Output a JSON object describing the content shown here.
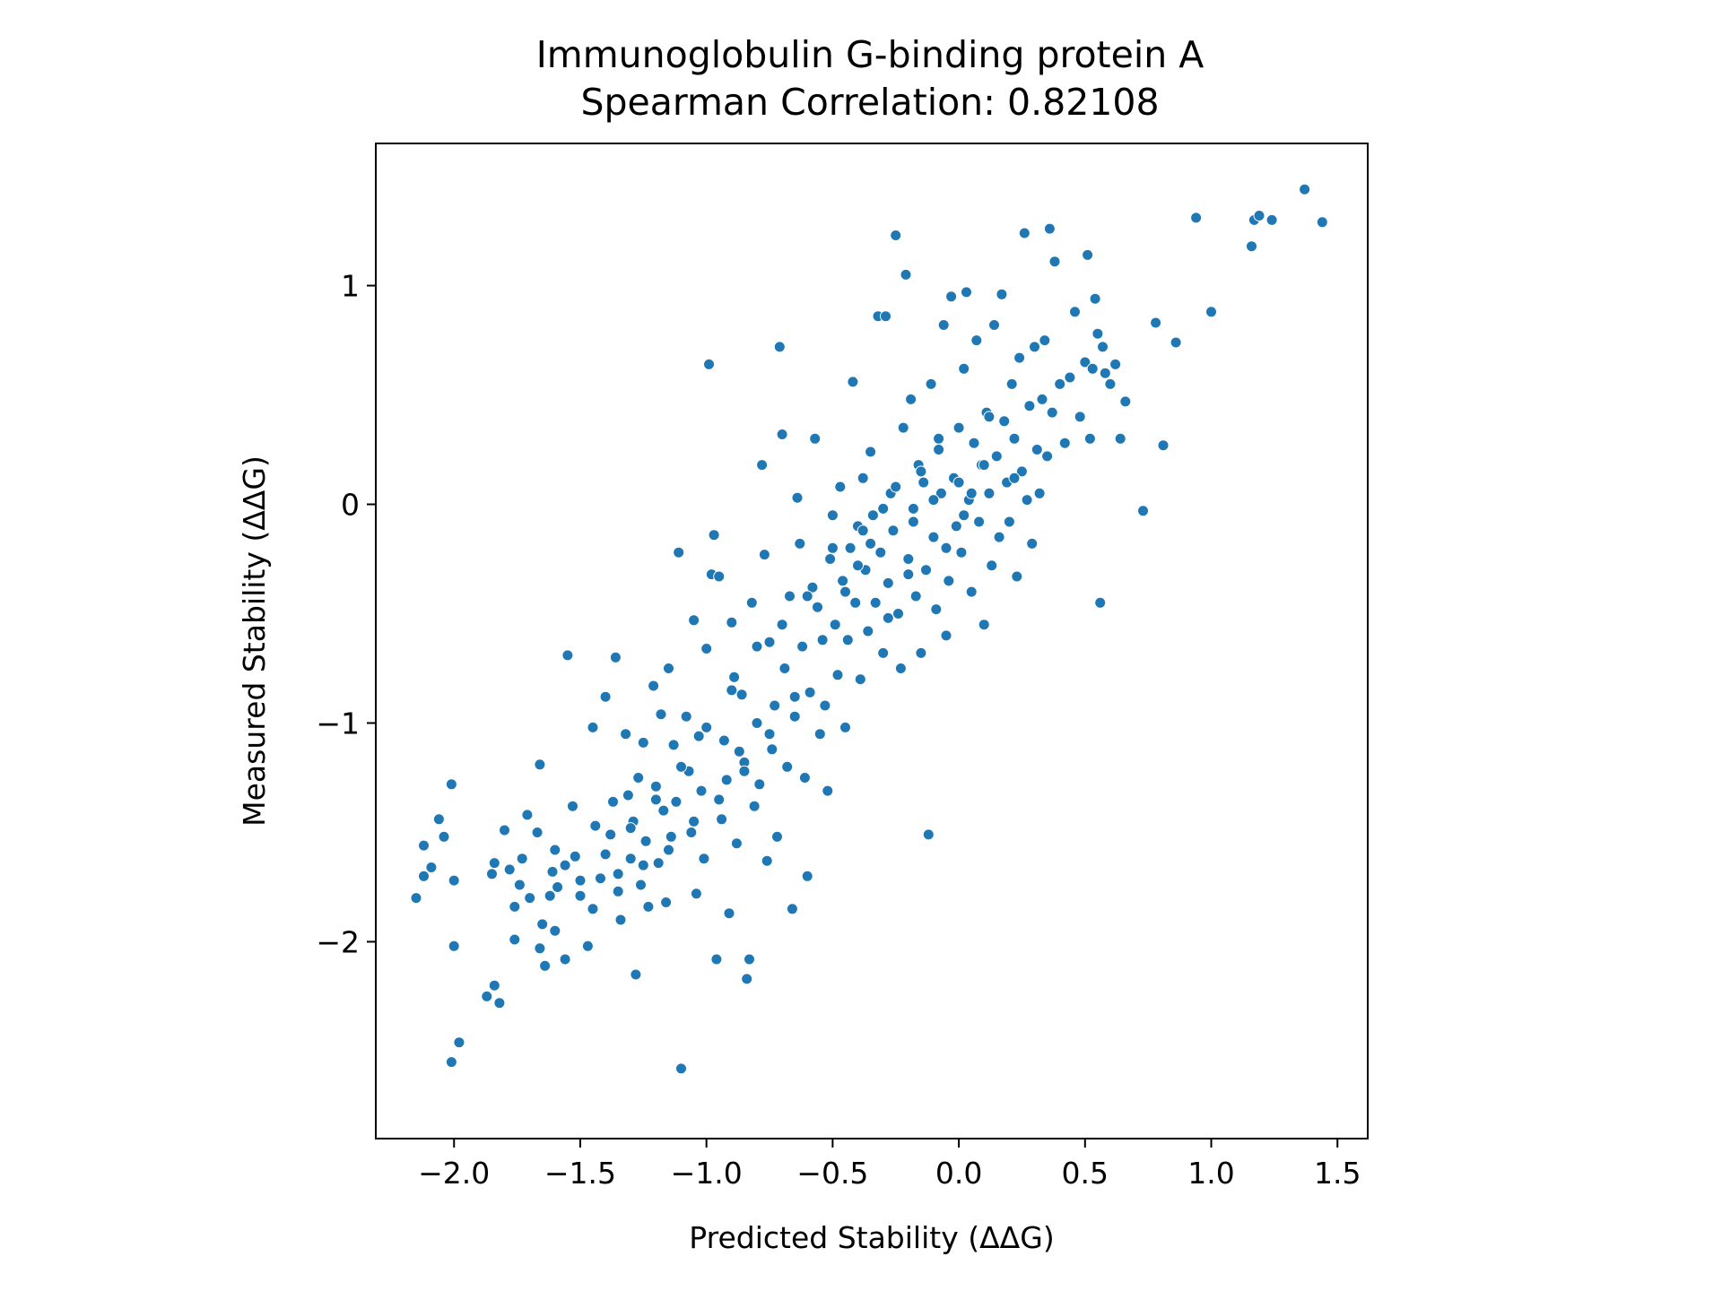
{
  "chart_data": {
    "type": "scatter",
    "title": "Immunoglobulin G-binding protein A",
    "subtitle": "Spearman Correlation: 0.82108",
    "xlabel": "Predicted Stability (ΔΔG)",
    "ylabel": "Measured Stability (ΔΔG)",
    "xlim": [
      -2.31,
      1.62
    ],
    "ylim": [
      -2.9,
      1.65
    ],
    "xticks": [
      -2.0,
      -1.5,
      -1.0,
      -0.5,
      0.0,
      0.5,
      1.0,
      1.5
    ],
    "xtick_labels": [
      "−2.0",
      "−1.5",
      "−1.0",
      "−0.5",
      "0.0",
      "0.5",
      "1.0",
      "1.5"
    ],
    "yticks": [
      -2,
      -1,
      0,
      1
    ],
    "ytick_labels": [
      "−2",
      "−1",
      "0",
      "1"
    ],
    "grid": false,
    "marker_color": "#1f77b4",
    "series": [
      {
        "points": [
          [
            -2.15,
            -1.8
          ],
          [
            -2.12,
            -1.56
          ],
          [
            -2.12,
            -1.7
          ],
          [
            -2.09,
            -1.66
          ],
          [
            -2.06,
            -1.44
          ],
          [
            -2.04,
            -1.52
          ],
          [
            -2.01,
            -1.28
          ],
          [
            -2.0,
            -1.72
          ],
          [
            -2.0,
            -2.02
          ],
          [
            -2.01,
            -2.55
          ],
          [
            -1.98,
            -2.46
          ],
          [
            -1.87,
            -2.25
          ],
          [
            -1.84,
            -2.2
          ],
          [
            -1.82,
            -2.28
          ],
          [
            -1.85,
            -1.69
          ],
          [
            -1.84,
            -1.64
          ],
          [
            -1.8,
            -1.49
          ],
          [
            -1.78,
            -1.67
          ],
          [
            -1.76,
            -1.99
          ],
          [
            -1.76,
            -1.84
          ],
          [
            -1.74,
            -1.74
          ],
          [
            -1.73,
            -1.62
          ],
          [
            -1.71,
            -1.42
          ],
          [
            -1.7,
            -1.8
          ],
          [
            -1.67,
            -1.5
          ],
          [
            -1.66,
            -1.19
          ],
          [
            -1.66,
            -2.03
          ],
          [
            -1.65,
            -1.92
          ],
          [
            -1.64,
            -2.11
          ],
          [
            -1.62,
            -1.79
          ],
          [
            -1.61,
            -1.68
          ],
          [
            -1.6,
            -1.58
          ],
          [
            -1.59,
            -1.75
          ],
          [
            -1.56,
            -1.65
          ],
          [
            -1.56,
            -2.08
          ],
          [
            -1.55,
            -0.69
          ],
          [
            -1.53,
            -1.38
          ],
          [
            -1.52,
            -1.61
          ],
          [
            -1.5,
            -1.79
          ],
          [
            -1.47,
            -2.02
          ],
          [
            -1.45,
            -1.02
          ],
          [
            -1.44,
            -1.47
          ],
          [
            -1.42,
            -1.71
          ],
          [
            -1.4,
            -0.88
          ],
          [
            -1.38,
            -1.51
          ],
          [
            -1.37,
            -1.36
          ],
          [
            -1.36,
            -0.7
          ],
          [
            -1.35,
            -1.69
          ],
          [
            -1.34,
            -1.9
          ],
          [
            -1.32,
            -1.05
          ],
          [
            -1.31,
            -1.33
          ],
          [
            -1.3,
            -1.62
          ],
          [
            -1.29,
            -1.45
          ],
          [
            -1.28,
            -2.15
          ],
          [
            -1.27,
            -1.25
          ],
          [
            -1.26,
            -1.74
          ],
          [
            -1.25,
            -1.09
          ],
          [
            -1.24,
            -1.54
          ],
          [
            -1.23,
            -1.84
          ],
          [
            -1.21,
            -0.83
          ],
          [
            -1.2,
            -1.29
          ],
          [
            -1.19,
            -1.64
          ],
          [
            -1.18,
            -0.96
          ],
          [
            -1.17,
            -1.4
          ],
          [
            -1.16,
            -1.82
          ],
          [
            -1.15,
            -0.75
          ],
          [
            -1.14,
            -1.52
          ],
          [
            -1.13,
            -1.1
          ],
          [
            -1.12,
            -1.36
          ],
          [
            -1.11,
            -0.22
          ],
          [
            -1.1,
            -2.58
          ],
          [
            -1.08,
            -0.97
          ],
          [
            -1.07,
            -1.22
          ],
          [
            -1.06,
            -1.5
          ],
          [
            -1.05,
            -0.53
          ],
          [
            -1.04,
            -1.78
          ],
          [
            -1.03,
            -1.06
          ],
          [
            -1.02,
            -1.31
          ],
          [
            -1.01,
            -1.62
          ],
          [
            -1.0,
            -0.66
          ],
          [
            -0.99,
            0.64
          ],
          [
            -0.98,
            -0.32
          ],
          [
            -0.97,
            -0.14
          ],
          [
            -0.96,
            -2.08
          ],
          [
            -0.95,
            -0.33
          ],
          [
            -0.94,
            -1.44
          ],
          [
            -0.93,
            -1.08
          ],
          [
            -0.92,
            -1.26
          ],
          [
            -0.91,
            -1.87
          ],
          [
            -0.9,
            -0.54
          ],
          [
            -0.89,
            -0.79
          ],
          [
            -0.88,
            -1.55
          ],
          [
            -0.87,
            -1.13
          ],
          [
            -0.86,
            -0.87
          ],
          [
            -0.85,
            -1.18
          ],
          [
            -0.84,
            -2.17
          ],
          [
            -0.83,
            -2.08
          ],
          [
            -0.82,
            -0.45
          ],
          [
            -0.81,
            -1.38
          ],
          [
            -0.8,
            -1.0
          ],
          [
            -0.79,
            -1.28
          ],
          [
            -0.78,
            0.18
          ],
          [
            -0.77,
            -0.23
          ],
          [
            -0.76,
            -1.63
          ],
          [
            -0.75,
            -0.63
          ],
          [
            -0.74,
            -1.12
          ],
          [
            -0.73,
            -0.92
          ],
          [
            -0.72,
            -1.52
          ],
          [
            -0.71,
            0.72
          ],
          [
            -0.7,
            0.32
          ],
          [
            -0.69,
            -0.75
          ],
          [
            -0.68,
            -1.2
          ],
          [
            -0.67,
            -0.42
          ],
          [
            -0.66,
            -1.85
          ],
          [
            -0.65,
            -0.97
          ],
          [
            -0.64,
            0.03
          ],
          [
            -0.63,
            -0.18
          ],
          [
            -0.62,
            -0.65
          ],
          [
            -0.61,
            -1.25
          ],
          [
            -0.6,
            -1.7
          ],
          [
            -0.59,
            -0.86
          ],
          [
            -0.58,
            -0.38
          ],
          [
            -0.57,
            0.3
          ],
          [
            -0.56,
            -0.47
          ],
          [
            -0.55,
            -1.05
          ],
          [
            -0.54,
            -0.62
          ],
          [
            -0.53,
            -0.92
          ],
          [
            -0.52,
            -1.31
          ],
          [
            -0.51,
            -0.25
          ],
          [
            -0.5,
            -0.05
          ],
          [
            -0.49,
            -0.55
          ],
          [
            -0.48,
            -0.78
          ],
          [
            -0.47,
            0.08
          ],
          [
            -0.46,
            -0.35
          ],
          [
            -0.45,
            -1.02
          ],
          [
            -0.44,
            -0.62
          ],
          [
            -0.43,
            -0.2
          ],
          [
            -0.42,
            0.56
          ],
          [
            -0.41,
            -0.45
          ],
          [
            -0.4,
            -0.1
          ],
          [
            -0.39,
            -0.8
          ],
          [
            -0.38,
            0.12
          ],
          [
            -0.37,
            -0.3
          ],
          [
            -0.36,
            -0.58
          ],
          [
            -0.35,
            0.24
          ],
          [
            -0.34,
            -0.05
          ],
          [
            -0.33,
            -0.45
          ],
          [
            -0.32,
            0.86
          ],
          [
            -0.31,
            -0.22
          ],
          [
            -0.3,
            -0.68
          ],
          [
            -0.29,
            0.86
          ],
          [
            -0.28,
            -0.36
          ],
          [
            -0.27,
            0.05
          ],
          [
            -0.26,
            -0.12
          ],
          [
            -0.25,
            1.23
          ],
          [
            -0.24,
            -0.5
          ],
          [
            -0.23,
            -0.75
          ],
          [
            -0.22,
            0.35
          ],
          [
            -0.21,
            1.05
          ],
          [
            -0.2,
            -0.25
          ],
          [
            -0.19,
            0.48
          ],
          [
            -0.18,
            -0.02
          ],
          [
            -0.17,
            -0.42
          ],
          [
            -0.16,
            0.18
          ],
          [
            -0.15,
            -0.68
          ],
          [
            -0.14,
            0.1
          ],
          [
            -0.13,
            -0.3
          ],
          [
            -0.12,
            -1.51
          ],
          [
            -0.11,
            0.55
          ],
          [
            -0.1,
            -0.15
          ],
          [
            -0.09,
            -0.48
          ],
          [
            -0.08,
            0.25
          ],
          [
            -0.07,
            0.05
          ],
          [
            -0.06,
            0.82
          ],
          [
            -0.05,
            -0.6
          ],
          [
            -0.04,
            -0.35
          ],
          [
            -0.03,
            0.95
          ],
          [
            -0.02,
            0.12
          ],
          [
            -0.01,
            -0.1
          ],
          [
            0.0,
            0.35
          ],
          [
            0.01,
            -0.22
          ],
          [
            0.02,
            0.62
          ],
          [
            0.03,
            0.97
          ],
          [
            0.04,
            0.02
          ],
          [
            0.05,
            -0.4
          ],
          [
            0.06,
            0.28
          ],
          [
            0.07,
            0.75
          ],
          [
            0.08,
            -0.08
          ],
          [
            0.09,
            0.18
          ],
          [
            0.1,
            -0.55
          ],
          [
            0.11,
            0.42
          ],
          [
            0.12,
            0.05
          ],
          [
            0.13,
            -0.28
          ],
          [
            0.14,
            0.82
          ],
          [
            0.15,
            0.22
          ],
          [
            0.16,
            -0.15
          ],
          [
            0.17,
            0.96
          ],
          [
            0.18,
            0.38
          ],
          [
            0.19,
            0.1
          ],
          [
            0.2,
            -0.08
          ],
          [
            0.21,
            0.55
          ],
          [
            0.22,
            0.3
          ],
          [
            0.23,
            -0.33
          ],
          [
            0.24,
            0.67
          ],
          [
            0.25,
            0.15
          ],
          [
            0.26,
            1.24
          ],
          [
            0.27,
            0.02
          ],
          [
            0.28,
            0.45
          ],
          [
            0.29,
            -0.18
          ],
          [
            0.3,
            0.72
          ],
          [
            0.31,
            0.25
          ],
          [
            0.32,
            0.05
          ],
          [
            0.33,
            0.48
          ],
          [
            0.34,
            0.75
          ],
          [
            0.35,
            0.22
          ],
          [
            0.36,
            1.26
          ],
          [
            0.37,
            0.42
          ],
          [
            0.38,
            1.11
          ],
          [
            0.4,
            0.55
          ],
          [
            0.42,
            0.28
          ],
          [
            0.44,
            0.58
          ],
          [
            0.46,
            0.88
          ],
          [
            0.48,
            0.4
          ],
          [
            0.5,
            0.65
          ],
          [
            0.51,
            1.14
          ],
          [
            0.52,
            0.3
          ],
          [
            0.53,
            0.62
          ],
          [
            0.54,
            0.94
          ],
          [
            0.55,
            0.78
          ],
          [
            0.56,
            -0.45
          ],
          [
            0.57,
            0.72
          ],
          [
            0.58,
            0.6
          ],
          [
            0.6,
            0.55
          ],
          [
            0.62,
            0.64
          ],
          [
            0.64,
            0.3
          ],
          [
            0.66,
            0.47
          ],
          [
            0.73,
            -0.03
          ],
          [
            0.78,
            0.83
          ],
          [
            0.81,
            0.27
          ],
          [
            0.86,
            0.74
          ],
          [
            0.94,
            1.31
          ],
          [
            1.0,
            0.88
          ],
          [
            1.16,
            1.18
          ],
          [
            1.17,
            1.3
          ],
          [
            1.19,
            1.32
          ],
          [
            1.24,
            1.3
          ],
          [
            1.37,
            1.44
          ],
          [
            1.44,
            1.29
          ],
          [
            -0.35,
            -0.18
          ],
          [
            -0.3,
            -0.02
          ],
          [
            -0.25,
            0.08
          ],
          [
            -0.2,
            -0.32
          ],
          [
            -0.15,
            0.15
          ],
          [
            -0.1,
            0.02
          ],
          [
            -0.05,
            -0.2
          ],
          [
            0.0,
            0.1
          ],
          [
            0.05,
            0.05
          ],
          [
            0.1,
            0.18
          ],
          [
            -0.4,
            -0.28
          ],
          [
            -0.45,
            -0.4
          ],
          [
            -0.5,
            -0.2
          ],
          [
            -0.38,
            -0.12
          ],
          [
            -0.28,
            -0.52
          ],
          [
            -0.18,
            -0.08
          ],
          [
            -0.08,
            0.3
          ],
          [
            0.02,
            -0.05
          ],
          [
            0.12,
            0.4
          ],
          [
            0.22,
            0.12
          ],
          [
            -0.6,
            -0.42
          ],
          [
            -0.7,
            -0.55
          ],
          [
            -0.8,
            -0.65
          ],
          [
            -0.9,
            -0.85
          ],
          [
            -1.0,
            -1.02
          ],
          [
            -1.1,
            -1.2
          ],
          [
            -1.2,
            -1.35
          ],
          [
            -1.3,
            -1.48
          ],
          [
            -1.4,
            -1.6
          ],
          [
            -1.5,
            -1.72
          ],
          [
            -0.65,
            -0.88
          ],
          [
            -0.75,
            -1.05
          ],
          [
            -0.85,
            -1.22
          ],
          [
            -0.95,
            -1.35
          ],
          [
            -1.05,
            -1.45
          ],
          [
            -1.15,
            -1.58
          ],
          [
            -1.25,
            -1.65
          ],
          [
            -1.35,
            -1.77
          ],
          [
            -1.45,
            -1.85
          ],
          [
            -1.6,
            -1.95
          ]
        ]
      }
    ]
  }
}
